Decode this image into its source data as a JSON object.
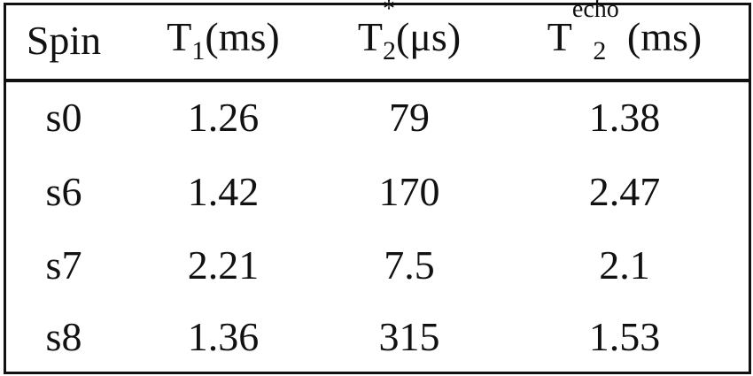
{
  "table": {
    "header": [
      {
        "text": "Spin"
      },
      {
        "base": "T",
        "sub": "1",
        "unit": "(ms)"
      },
      {
        "base": "T",
        "sub": "2",
        "sup": "*",
        "unit": "(μs)"
      },
      {
        "base": "T",
        "sub": "2",
        "sup": "echo",
        "unit": "(ms)"
      }
    ],
    "rows": [
      [
        "s0",
        1.26,
        79,
        1.38
      ],
      [
        "s6",
        1.42,
        170,
        2.47
      ],
      [
        "s7",
        2.21,
        7.5,
        2.1
      ],
      [
        "s8",
        1.36,
        315,
        1.53
      ]
    ]
  }
}
